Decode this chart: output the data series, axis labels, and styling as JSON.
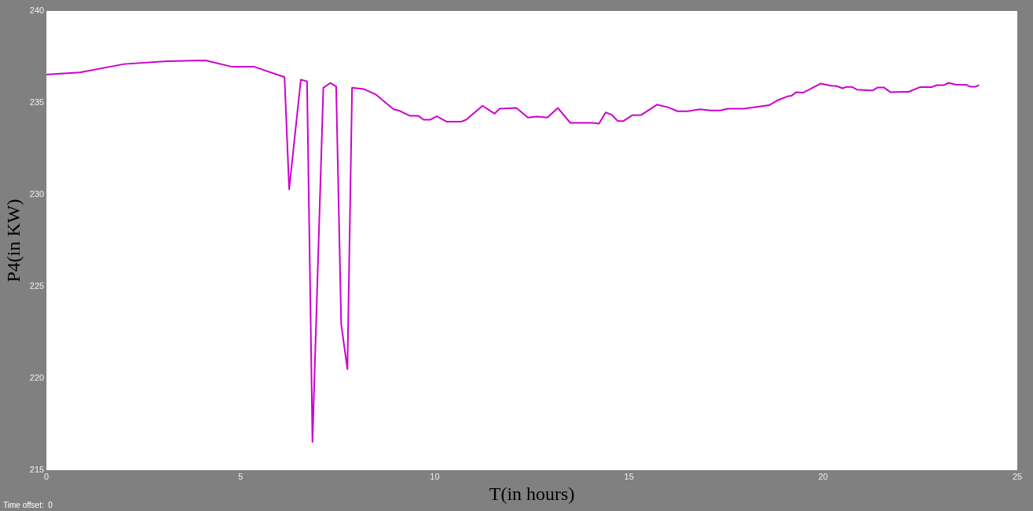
{
  "chart_data": {
    "type": "line",
    "xlabel": "T(in hours)",
    "ylabel": "P4(in KW)",
    "annotations": [
      "Time offset:  0"
    ],
    "xlim": [
      0,
      25
    ],
    "xticks": [
      0,
      5,
      10,
      15,
      20,
      25
    ],
    "ylim": [
      215,
      240
    ],
    "yticks": [
      215,
      220,
      225,
      230,
      235,
      240
    ],
    "grid": false,
    "legend": false,
    "marker": "none",
    "line_style": "solid",
    "series": [
      {
        "color": "#cc00cc",
        "x": [
          0,
          0.22,
          0.86,
          2.0,
          3.1,
          4.1,
          4.76,
          5.34,
          6.13,
          6.25,
          6.55,
          6.71,
          6.85,
          7.13,
          7.31,
          7.46,
          7.59,
          7.75,
          7.87,
          8.17,
          8.49,
          8.94,
          9.1,
          9.35,
          9.57,
          9.71,
          9.88,
          10.05,
          10.31,
          10.67,
          10.81,
          11.01,
          11.23,
          11.54,
          11.67,
          12.1,
          12.4,
          12.63,
          12.9,
          13.17,
          13.49,
          14.06,
          14.23,
          14.4,
          14.56,
          14.71,
          14.86,
          15.09,
          15.32,
          15.72,
          16.02,
          16.25,
          16.52,
          16.82,
          17.12,
          17.35,
          17.55,
          17.95,
          18.21,
          18.61,
          18.84,
          19.08,
          19.18,
          19.31,
          19.48,
          19.68,
          19.94,
          20.21,
          20.34,
          20.5,
          20.6,
          20.74,
          20.87,
          21.27,
          21.4,
          21.57,
          21.73,
          22.03,
          22.2,
          22.5,
          22.8,
          22.93,
          23.1,
          23.23,
          23.43,
          23.69,
          23.79,
          23.93,
          24.0
        ],
        "values": [
          236.54,
          236.57,
          236.66,
          237.11,
          237.26,
          237.31,
          236.97,
          236.97,
          236.4,
          230.29,
          236.26,
          236.17,
          216.54,
          235.82,
          236.08,
          235.89,
          222.94,
          220.5,
          235.82,
          235.75,
          235.44,
          234.65,
          234.56,
          234.3,
          234.3,
          234.08,
          234.08,
          234.27,
          233.97,
          233.97,
          234.08,
          234.44,
          234.84,
          234.41,
          234.68,
          234.72,
          234.2,
          234.25,
          234.2,
          234.72,
          233.91,
          233.91,
          233.87,
          234.48,
          234.34,
          234.01,
          234.01,
          234.33,
          234.34,
          234.9,
          234.75,
          234.54,
          234.54,
          234.65,
          234.58,
          234.58,
          234.68,
          234.68,
          234.75,
          234.87,
          235.15,
          235.35,
          235.38,
          235.58,
          235.55,
          235.76,
          236.05,
          235.93,
          235.92,
          235.79,
          235.87,
          235.87,
          235.72,
          235.67,
          235.83,
          235.83,
          235.58,
          235.6,
          235.6,
          235.86,
          235.86,
          235.96,
          235.96,
          236.09,
          235.98,
          235.98,
          235.88,
          235.88,
          235.95
        ]
      }
    ]
  }
}
